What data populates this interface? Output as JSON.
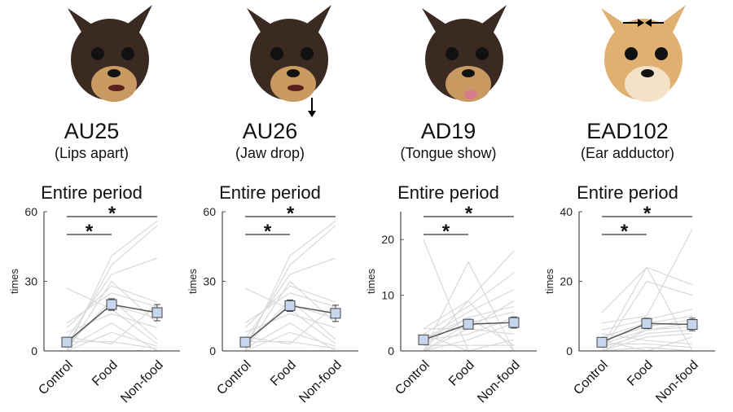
{
  "colors": {
    "individual": "#d9d9d9",
    "mean_line": "#555555",
    "marker_fill": "#c6d6ee",
    "marker_stroke": "#444444",
    "axis": "#555555"
  },
  "panels": [
    {
      "code": "AU25",
      "description": "(Lips apart)",
      "dog": "black-tan",
      "arrow": "none"
    },
    {
      "code": "AU26",
      "description": "(Jaw drop)",
      "dog": "black-tan",
      "arrow": "down"
    },
    {
      "code": "AD19",
      "description": "(Tongue show)",
      "dog": "black-tan-tongue",
      "arrow": "none"
    },
    {
      "code": "EAD102",
      "description": "(Ear adductor)",
      "dog": "fawn",
      "arrow": "ears-inward"
    }
  ],
  "chart_data": [
    {
      "type": "line",
      "title": "Entire period",
      "ylabel": "times",
      "categories": [
        "Control",
        "Food",
        "Non-food"
      ],
      "ylim": [
        0,
        60
      ],
      "yticks": [
        0,
        30,
        60
      ],
      "mean": [
        3.8,
        20,
        16.5
      ],
      "sem": [
        1,
        2.5,
        3.5
      ],
      "individuals": [
        [
          0,
          41,
          56
        ],
        [
          2,
          37,
          54
        ],
        [
          27,
          18,
          3
        ],
        [
          5,
          33,
          40
        ],
        [
          10,
          28,
          21
        ],
        [
          12,
          25,
          19
        ],
        [
          3,
          20,
          14
        ],
        [
          8,
          16,
          10
        ],
        [
          0,
          8,
          2
        ],
        [
          4,
          4,
          1
        ],
        [
          6,
          3,
          20
        ],
        [
          1,
          12,
          0
        ],
        [
          0,
          0,
          0
        ],
        [
          2,
          22,
          5
        ],
        [
          0,
          30,
          12
        ]
      ],
      "significance": [
        {
          "from": "Control",
          "to": "Food",
          "label": "*"
        },
        {
          "from": "Control",
          "to": "Non-food",
          "label": "*"
        }
      ]
    },
    {
      "type": "line",
      "title": "Entire period",
      "ylabel": "times",
      "categories": [
        "Control",
        "Food",
        "Non-food"
      ],
      "ylim": [
        0,
        60
      ],
      "yticks": [
        0,
        30,
        60
      ],
      "mean": [
        3.8,
        19.5,
        16.2
      ],
      "sem": [
        1,
        2.5,
        3.5
      ],
      "individuals": [
        [
          0,
          41,
          56
        ],
        [
          2,
          37,
          54
        ],
        [
          27,
          18,
          3
        ],
        [
          5,
          33,
          40
        ],
        [
          10,
          28,
          21
        ],
        [
          12,
          25,
          19
        ],
        [
          3,
          20,
          14
        ],
        [
          8,
          16,
          10
        ],
        [
          0,
          8,
          2
        ],
        [
          4,
          4,
          1
        ],
        [
          6,
          3,
          20
        ],
        [
          1,
          12,
          0
        ],
        [
          0,
          0,
          0
        ],
        [
          2,
          22,
          5
        ],
        [
          0,
          30,
          12
        ]
      ],
      "significance": [
        {
          "from": "Control",
          "to": "Food",
          "label": "*"
        },
        {
          "from": "Control",
          "to": "Non-food",
          "label": "*"
        }
      ]
    },
    {
      "type": "line",
      "title": "Entire period",
      "ylabel": "times",
      "categories": [
        "Control",
        "Food",
        "Non-food"
      ],
      "ylim": [
        0,
        25
      ],
      "yticks": [
        0,
        10,
        20
      ],
      "mean": [
        2,
        4.8,
        5.1
      ],
      "sem": [
        0.8,
        0.6,
        1
      ],
      "individuals": [
        [
          20,
          0,
          0
        ],
        [
          0,
          16,
          0
        ],
        [
          4,
          9,
          18
        ],
        [
          3,
          8,
          14
        ],
        [
          2,
          7,
          11
        ],
        [
          1,
          6,
          8
        ],
        [
          0,
          5,
          7
        ],
        [
          4,
          4,
          3
        ],
        [
          2,
          3,
          6
        ],
        [
          0,
          2,
          5
        ],
        [
          1,
          1,
          1
        ],
        [
          3,
          0,
          2
        ],
        [
          0,
          9,
          0
        ],
        [
          2,
          6,
          1
        ],
        [
          0,
          4,
          9
        ]
      ],
      "significance": [
        {
          "from": "Control",
          "to": "Food",
          "label": "*"
        },
        {
          "from": "Control",
          "to": "Non-food",
          "label": "*"
        }
      ]
    },
    {
      "type": "line",
      "title": "Entire period",
      "ylabel": "times",
      "categories": [
        "Control",
        "Food",
        "Non-food"
      ],
      "ylim": [
        0,
        40
      ],
      "yticks": [
        0,
        20,
        40
      ],
      "mean": [
        2.5,
        7.9,
        7.6
      ],
      "sem": [
        0.5,
        1.5,
        1.8
      ],
      "individuals": [
        [
          11,
          24,
          19
        ],
        [
          0,
          20,
          16
        ],
        [
          8,
          10,
          35
        ],
        [
          6,
          9,
          12
        ],
        [
          4,
          8,
          10
        ],
        [
          3,
          7,
          9
        ],
        [
          2,
          6,
          8
        ],
        [
          1,
          5,
          6
        ],
        [
          0,
          4,
          5
        ],
        [
          5,
          3,
          2
        ],
        [
          2,
          2,
          1
        ],
        [
          0,
          1,
          0
        ],
        [
          3,
          0,
          4
        ],
        [
          1,
          24,
          0
        ],
        [
          0,
          6,
          7
        ]
      ],
      "significance": [
        {
          "from": "Control",
          "to": "Food",
          "label": "*"
        },
        {
          "from": "Control",
          "to": "Non-food",
          "label": "*"
        }
      ]
    }
  ]
}
